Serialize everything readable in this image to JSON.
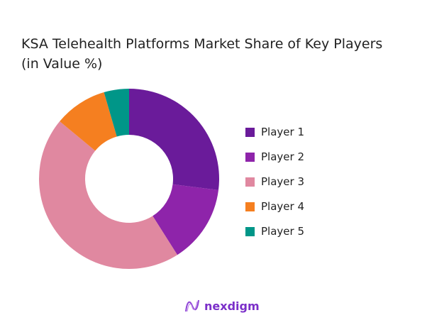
{
  "chart_data": {
    "type": "pie",
    "donut": true,
    "title": "KSA Telehealth Platforms Market Share of Key Players (in Value %)",
    "categories": [
      "Player 1",
      "Player 2",
      "Player 3",
      "Player 4",
      "Player 5"
    ],
    "values": [
      27,
      14,
      45,
      9.5,
      4.5
    ],
    "colors": [
      "#6a1b9a",
      "#8e24aa",
      "#e088a0",
      "#f57f20",
      "#009688"
    ],
    "legend_position": "right"
  },
  "brand": {
    "name": "nexdigm"
  }
}
